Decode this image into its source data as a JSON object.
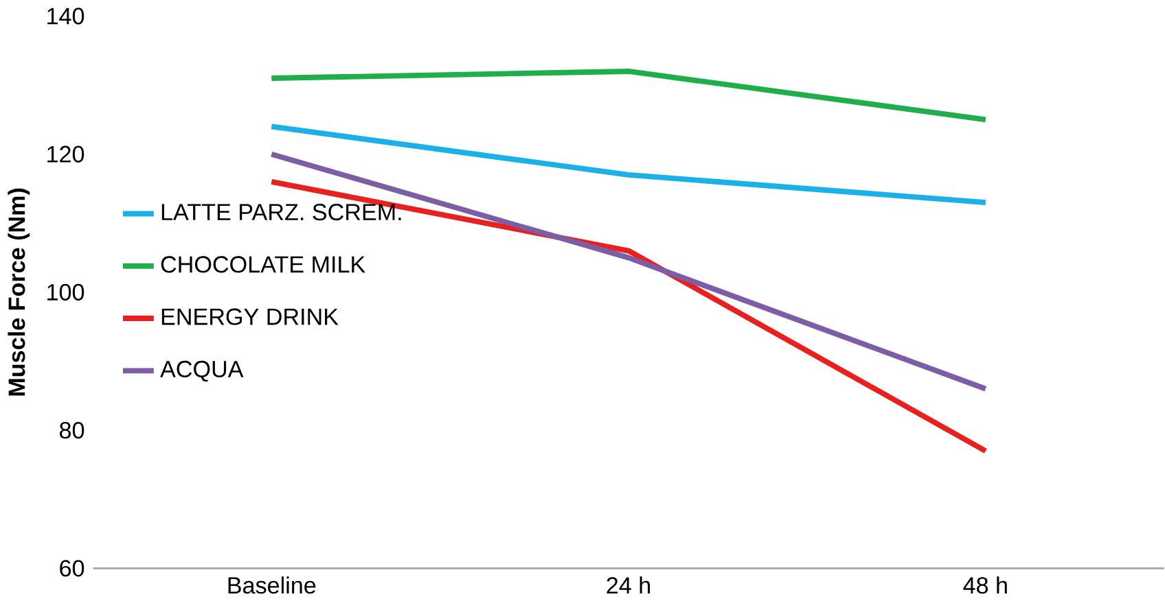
{
  "chart_data": {
    "type": "line",
    "ylabel": "Muscle Force (Nm)",
    "categories": [
      "Baseline",
      "24 h",
      "48 h"
    ],
    "ylim": [
      60,
      140
    ],
    "yticks": [
      60,
      80,
      100,
      120,
      140
    ],
    "legend": "left",
    "grid": false,
    "marker": "none",
    "line_style": "solid",
    "series": [
      {
        "name": "LATTE PARZ. SCREM.",
        "color": "#1ab0e8",
        "values": [
          124,
          117,
          113
        ]
      },
      {
        "name": "CHOCOLATE MILK",
        "color": "#1fae4b",
        "values": [
          131,
          132,
          125
        ]
      },
      {
        "name": "ENERGY DRINK",
        "color": "#e8201e",
        "values": [
          116,
          106,
          77
        ]
      },
      {
        "name": "ACQUA",
        "color": "#7d5ea6",
        "values": [
          120,
          105,
          86
        ]
      }
    ]
  }
}
